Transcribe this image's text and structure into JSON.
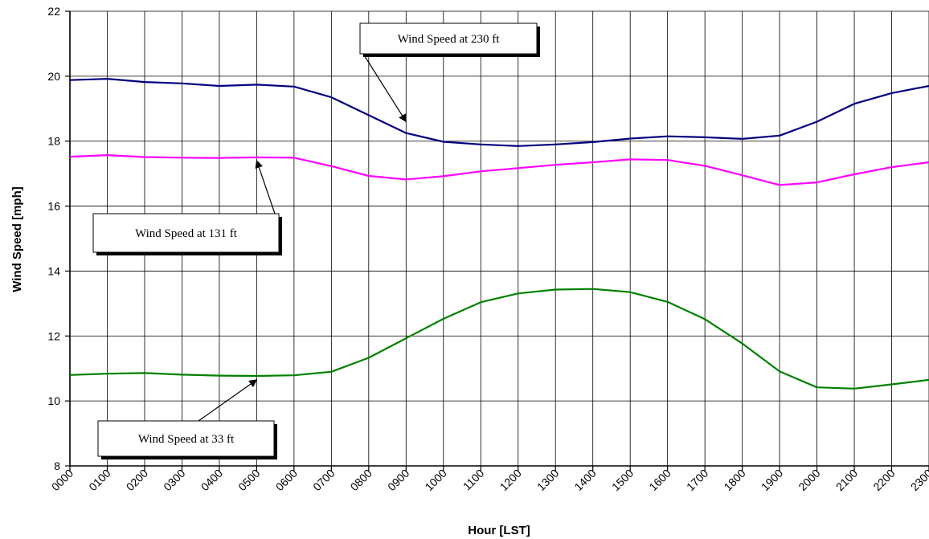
{
  "chart_data": {
    "type": "line",
    "title": "",
    "xlabel": "Hour [LST]",
    "ylabel": "Wind Speed [mph]",
    "ylim": [
      8,
      22
    ],
    "yticks": [
      8,
      10,
      12,
      14,
      16,
      18,
      20,
      22
    ],
    "grid": true,
    "categories": [
      "0000",
      "0100",
      "0200",
      "0300",
      "0400",
      "0500",
      "0600",
      "0700",
      "0800",
      "0900",
      "1000",
      "1100",
      "1200",
      "1300",
      "1400",
      "1500",
      "1600",
      "1700",
      "1800",
      "1900",
      "2000",
      "2100",
      "2200",
      "2300"
    ],
    "series": [
      {
        "color": "#000080",
        "values": [
          19.88,
          19.92,
          19.82,
          19.78,
          19.7,
          19.74,
          19.68,
          19.35,
          18.8,
          18.25,
          17.98,
          17.9,
          17.85,
          17.9,
          17.97,
          18.08,
          18.15,
          18.12,
          18.07,
          18.17,
          18.6,
          19.15,
          19.48,
          19.7
        ]
      },
      {
        "color": "#FF00FF",
        "values": [
          17.52,
          17.57,
          17.51,
          17.49,
          17.48,
          17.5,
          17.49,
          17.23,
          16.93,
          16.82,
          16.92,
          17.07,
          17.17,
          17.27,
          17.35,
          17.44,
          17.42,
          17.24,
          16.95,
          16.65,
          16.73,
          16.98,
          17.2,
          17.35
        ]
      },
      {
        "color": "#008000",
        "values": [
          10.8,
          10.84,
          10.86,
          10.81,
          10.78,
          10.77,
          10.79,
          10.9,
          11.33,
          11.93,
          12.53,
          13.04,
          13.31,
          13.43,
          13.45,
          13.35,
          13.05,
          12.52,
          11.77,
          10.91,
          10.42,
          10.38,
          10.51,
          10.65
        ]
      }
    ],
    "annotations": [
      {
        "text": "Wind Speed at 230 ft",
        "target_category": "0900",
        "target_value": 18.6
      },
      {
        "text": "Wind Speed at 131 ft",
        "target_category": "0500",
        "target_value": 17.4
      },
      {
        "text": "Wind Speed at 33 ft",
        "target_category": "0500",
        "target_value": 10.65
      }
    ]
  }
}
